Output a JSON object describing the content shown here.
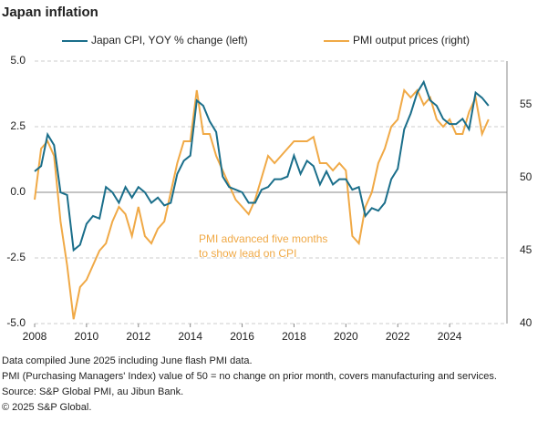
{
  "chart_data": {
    "type": "line",
    "title": "Japan inflation",
    "x": [
      2008.0,
      2008.25,
      2008.5,
      2008.75,
      2009.0,
      2009.25,
      2009.5,
      2009.75,
      2010.0,
      2010.25,
      2010.5,
      2010.75,
      2011.0,
      2011.25,
      2011.5,
      2011.75,
      2012.0,
      2012.25,
      2012.5,
      2012.75,
      2013.0,
      2013.25,
      2013.5,
      2013.75,
      2014.0,
      2014.25,
      2014.5,
      2014.75,
      2015.0,
      2015.25,
      2015.5,
      2015.75,
      2016.0,
      2016.25,
      2016.5,
      2016.75,
      2017.0,
      2017.25,
      2017.5,
      2017.75,
      2018.0,
      2018.25,
      2018.5,
      2018.75,
      2019.0,
      2019.25,
      2019.5,
      2019.75,
      2020.0,
      2020.25,
      2020.5,
      2020.75,
      2021.0,
      2021.25,
      2021.5,
      2021.75,
      2022.0,
      2022.25,
      2022.5,
      2022.75,
      2023.0,
      2023.25,
      2023.5,
      2023.75,
      2024.0,
      2024.25,
      2024.5,
      2024.75,
      2025.0,
      2025.25,
      2025.5
    ],
    "series": [
      {
        "name": "Japan CPI, YOY % change (left)",
        "color": "#1a6e8a",
        "axis": "y",
        "values": [
          0.8,
          1.0,
          2.2,
          1.8,
          0.0,
          -0.1,
          -2.2,
          -2.0,
          -1.2,
          -0.9,
          -1.0,
          0.2,
          0.0,
          -0.4,
          0.2,
          -0.2,
          0.2,
          0.0,
          -0.4,
          -0.2,
          -0.5,
          -0.4,
          0.7,
          1.2,
          1.4,
          3.5,
          3.3,
          2.7,
          2.3,
          0.6,
          0.2,
          0.1,
          0.0,
          -0.4,
          -0.4,
          0.1,
          0.2,
          0.5,
          0.5,
          0.6,
          1.4,
          0.7,
          1.2,
          1.0,
          0.3,
          0.8,
          0.3,
          0.5,
          0.5,
          0.1,
          0.2,
          -0.9,
          -0.6,
          -0.7,
          -0.4,
          0.5,
          0.9,
          2.4,
          3.0,
          3.8,
          4.2,
          3.5,
          3.3,
          2.8,
          2.6,
          2.6,
          2.8,
          2.4,
          3.8,
          3.6,
          3.3
        ]
      },
      {
        "name": "PMI output prices (right)",
        "color": "#f0a946",
        "axis": "y2",
        "values": [
          48.5,
          52,
          52.5,
          51.5,
          47,
          44,
          40.3,
          42.5,
          43,
          44,
          45,
          45.5,
          47,
          48,
          47.5,
          46,
          48,
          46,
          45.5,
          46.5,
          47,
          49,
          51,
          52.5,
          52.5,
          56,
          53,
          53,
          51.5,
          50.5,
          49.5,
          48.5,
          48,
          47.5,
          48.5,
          50,
          51.5,
          51,
          51.5,
          52,
          52.5,
          52.5,
          52.5,
          52.8,
          51,
          51,
          50.5,
          51,
          50.5,
          46,
          45.5,
          48,
          49,
          51,
          52,
          53.5,
          54,
          56,
          55.5,
          56,
          55,
          55.5,
          54,
          53.5,
          54,
          53,
          53,
          54.5,
          55.5,
          53,
          54
        ]
      }
    ],
    "xlim": [
      2008,
      2026
    ],
    "xticks": [
      2008,
      2010,
      2012,
      2014,
      2016,
      2018,
      2020,
      2022,
      2024
    ],
    "ylim": [
      -5,
      5
    ],
    "yticks": [
      {
        "value": 5,
        "label": "5.0"
      },
      {
        "value": 2.5,
        "label": "2.5"
      },
      {
        "value": 0,
        "label": "0.0"
      },
      {
        "value": -2.5,
        "label": "-2.5"
      },
      {
        "value": -5,
        "label": "-5.0"
      }
    ],
    "y2lim": [
      40,
      58
    ],
    "y2ticks": [
      40,
      45,
      50,
      55
    ],
    "grid": true,
    "annotation": [
      "PMI advanced  five months",
      "to show lead on CPI"
    ],
    "notes": [
      "Data compiled June 2025 including June flash PMI data.",
      "PMI (Purchasing Managers' Index) value of 50 = no change on prior month, covers manufacturing and services.",
      "Source: S&P Global PMI, au Jibun Bank.",
      "© 2025 S&P Global."
    ]
  }
}
